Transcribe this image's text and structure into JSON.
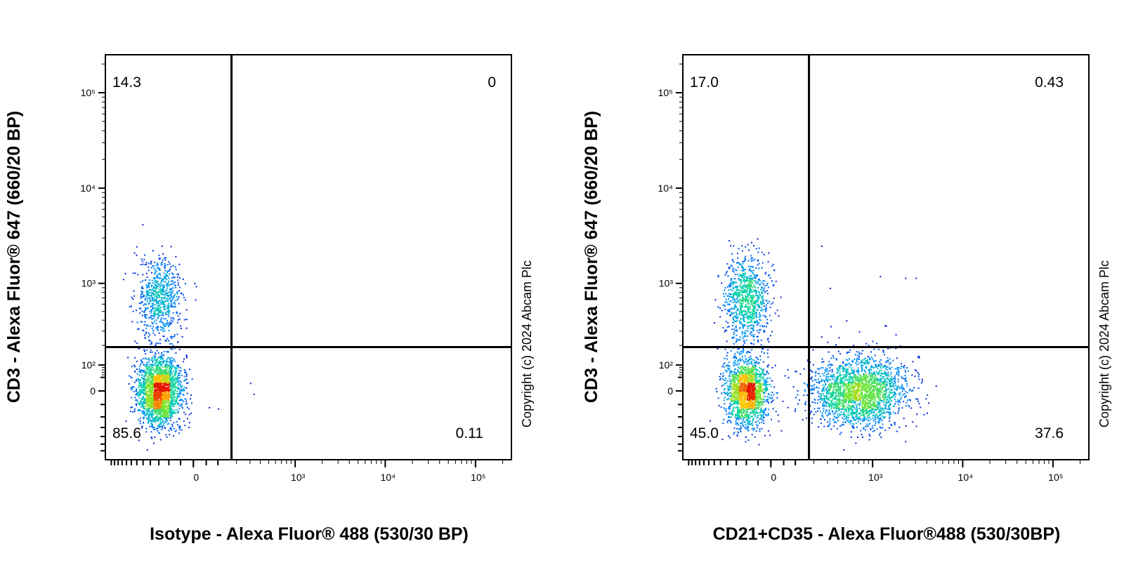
{
  "chart_data": [
    {
      "type": "scatter",
      "subtype": "flow-cytometry-pseudocolor-density",
      "xlabel": "Isotype - Alexa Fluor® 488 (530/30 BP)",
      "ylabel": "CD3 - Alexa Fluor® 647 (660/20 BP)",
      "x_scale": "biexponential",
      "y_scale": "biexponential",
      "x_ticks": [
        "0",
        "10^3",
        "10^4",
        "10^5"
      ],
      "y_ticks": [
        "0",
        "10^2",
        "10^3",
        "10^4",
        "10^5"
      ],
      "quadrant_gate": {
        "x": 170,
        "y": 190
      },
      "quadrants": [
        {
          "position": "upper-left",
          "value": "14.3"
        },
        {
          "position": "upper-right",
          "value": "0"
        },
        {
          "position": "lower-left",
          "value": "85.6"
        },
        {
          "position": "lower-right",
          "value": "0.11"
        }
      ],
      "populations": [
        {
          "x_center": -150,
          "y_center": 700,
          "n": 700
        },
        {
          "x_center": -150,
          "y_center": 0,
          "n": 2200
        }
      ],
      "outlier_points": [
        [
          300,
          30
        ],
        [
          330,
          -10
        ],
        [
          60,
          -60
        ],
        [
          100,
          -65
        ]
      ],
      "copyright": "Copyright (c) 2024 Abcam Plc",
      "grid": false,
      "legend": "none"
    },
    {
      "type": "scatter",
      "subtype": "flow-cytometry-pseudocolor-density",
      "xlabel": "CD21+CD35 - Alexa Fluor®488 (530/30BP)",
      "ylabel": "CD3 - Alexa Fluor® 647 (660/20 BP)",
      "x_scale": "biexponential",
      "y_scale": "biexponential",
      "x_ticks": [
        "0",
        "10^3",
        "10^4",
        "10^5"
      ],
      "y_ticks": [
        "0",
        "10^2",
        "10^3",
        "10^4",
        "10^5"
      ],
      "quadrant_gate": {
        "x": 170,
        "y": 190
      },
      "quadrants": [
        {
          "position": "upper-left",
          "value": "17.0"
        },
        {
          "position": "upper-right",
          "value": "0.43"
        },
        {
          "position": "lower-left",
          "value": "45.0"
        },
        {
          "position": "lower-right",
          "value": "37.6"
        }
      ],
      "populations": [
        {
          "x_center": -100,
          "y_center": 700,
          "n": 900
        },
        {
          "x_center": -100,
          "y_center": 0,
          "n": 1700
        },
        {
          "x_center": 850,
          "y_center": 0,
          "n": 1500
        },
        {
          "x_center": 450,
          "y_center": 0,
          "n": 700
        }
      ],
      "outlier_points": [
        [
          250,
          2500
        ],
        [
          320,
          900
        ],
        [
          500,
          400
        ],
        [
          1200,
          1200
        ],
        [
          2300,
          1150
        ],
        [
          3000,
          1150
        ],
        [
          1400,
          350
        ],
        [
          2000,
          200
        ],
        [
          700,
          300
        ],
        [
          1800,
          190
        ],
        [
          5000,
          20
        ],
        [
          3500,
          45
        ]
      ],
      "copyright": "Copyright (c) 2024 Abcam Plc",
      "grid": false,
      "legend": "none"
    }
  ]
}
